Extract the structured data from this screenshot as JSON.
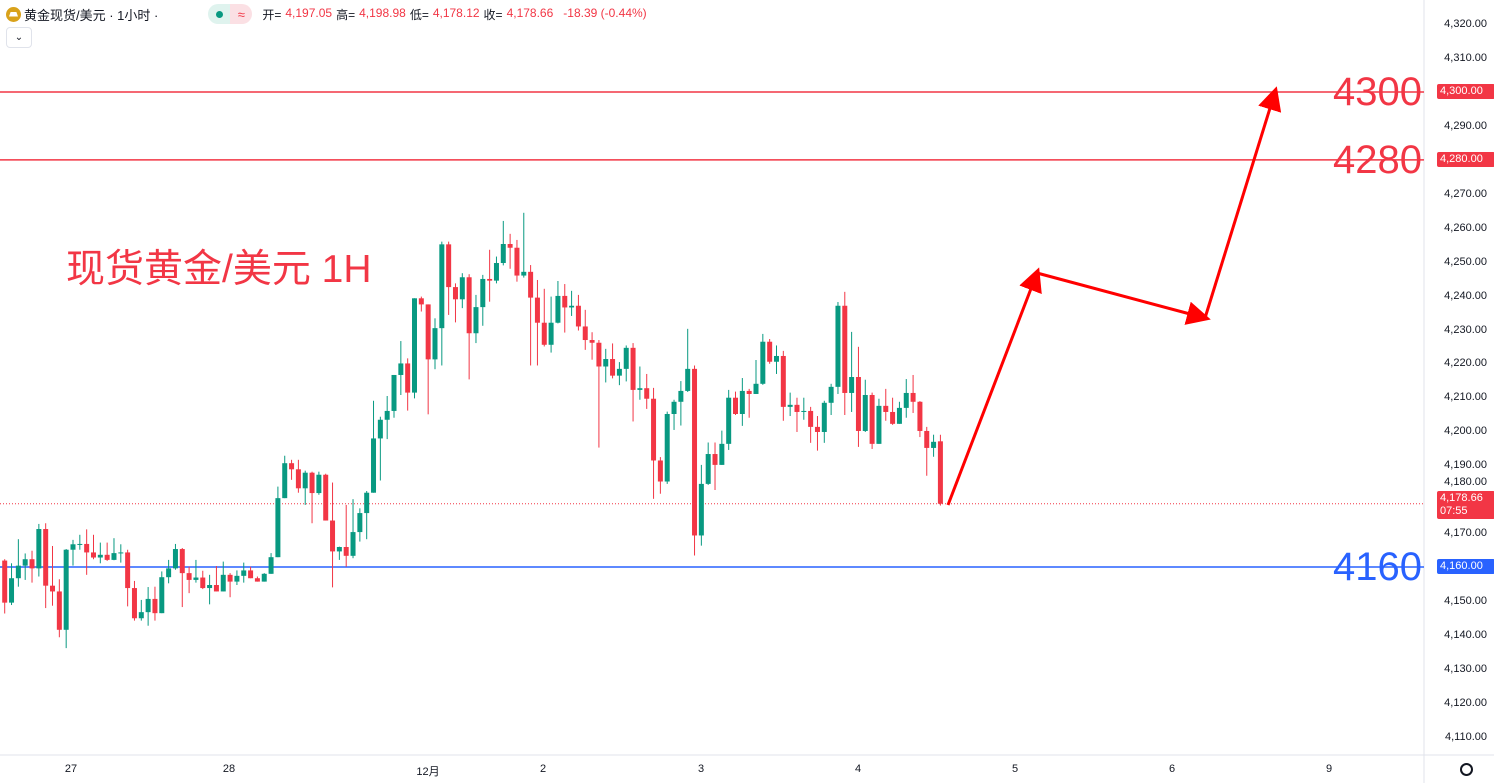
{
  "header": {
    "symbol": "黄金现货/美元 · 1小时 ·",
    "pill_wave": "≈",
    "open_label": "开=",
    "open": "4,197.05",
    "high_label": "高=",
    "high": "4,198.98",
    "low_label": "低=",
    "low": "4,178.12",
    "close_label": "收=",
    "close": "4,178.66",
    "change": "-18.39 (-0.44%)",
    "dropdown": "⌄"
  },
  "overlay_title": "现货黄金/美元 1H",
  "levels": [
    {
      "label": "4300",
      "tag": "4,300.00",
      "price": 4300,
      "color": "#f23645"
    },
    {
      "label": "4280",
      "tag": "4,280.00",
      "price": 4280,
      "color": "#f23645"
    },
    {
      "label": "4160",
      "tag": "4,160.00",
      "price": 4160,
      "color": "#2962ff"
    }
  ],
  "current": {
    "price": "4,178.66",
    "countdown": "07:55",
    "value": 4178.66,
    "color": "#f23645"
  },
  "chart_data": {
    "type": "candlestick",
    "ylim": [
      4105,
      4325
    ],
    "yticks": [
      "4,320.00",
      "4,310.00",
      "4,300.00",
      "4,290.00",
      "4,280.00",
      "4,270.00",
      "4,260.00",
      "4,250.00",
      "4,240.00",
      "4,230.00",
      "4,220.00",
      "4,210.00",
      "4,200.00",
      "4,190.00",
      "4,180.00",
      "4,170.00",
      "4,160.00",
      "4,150.00",
      "4,140.00",
      "4,130.00",
      "4,120.00",
      "4,110.00"
    ],
    "xticks": [
      "27",
      "28",
      "12月",
      "2",
      "3",
      "4",
      "5",
      "6",
      "9"
    ],
    "up_color": "#089981",
    "down_color": "#f23645",
    "ohlc": [
      [
        4161.9,
        4162.3,
        4146.3,
        4149.5
      ],
      [
        4149.5,
        4161.1,
        4148.8,
        4156.7
      ],
      [
        4156.7,
        4168.2,
        4154.2,
        4160.4
      ],
      [
        4160.4,
        4164,
        4156.2,
        4162.3
      ],
      [
        4162.3,
        4164.8,
        4155.4,
        4159.6
      ],
      [
        4159.6,
        4172.7,
        4157.2,
        4171.2
      ],
      [
        4171.2,
        4172.9,
        4147.9,
        4154.5
      ],
      [
        4154.5,
        4166.2,
        4148.6,
        4152.8
      ],
      [
        4152.8,
        4156.4,
        4139.3,
        4141.5
      ],
      [
        4141.5,
        4165.3,
        4136.1,
        4165.1
      ],
      [
        4165.1,
        4168,
        4160.4,
        4166.7
      ],
      [
        4166.7,
        4169.5,
        4165.1,
        4166.8
      ],
      [
        4166.8,
        4171.1,
        4157.7,
        4164.3
      ],
      [
        4164.3,
        4169.5,
        4162.3,
        4162.8
      ],
      [
        4162.8,
        4167.2,
        4161.1,
        4163.6
      ],
      [
        4163.6,
        4167.2,
        4161.8,
        4162.1
      ],
      [
        4162.1,
        4168.5,
        4162,
        4164.1
      ],
      [
        4164.1,
        4166.7,
        4161.3,
        4164.3
      ],
      [
        4164.3,
        4165.1,
        4148.4,
        4153.8
      ],
      [
        4153.8,
        4155.9,
        4144.2,
        4144.9
      ],
      [
        4144.9,
        4150.3,
        4144.2,
        4146.7
      ],
      [
        4146.7,
        4154.1,
        4142.7,
        4150.6
      ],
      [
        4150.6,
        4154.2,
        4144.2,
        4146.4
      ],
      [
        4146.4,
        4158.7,
        4146.4,
        4157
      ],
      [
        4157,
        4162.1,
        4155.2,
        4159.6
      ],
      [
        4159.6,
        4166.8,
        4159.2,
        4165.3
      ],
      [
        4165.3,
        4165.6,
        4148.2,
        4158.2
      ],
      [
        4158.2,
        4160.1,
        4152.3,
        4156.2
      ],
      [
        4156.2,
        4162.1,
        4155.4,
        4156.9
      ],
      [
        4156.9,
        4158.9,
        4153.5,
        4153.8
      ],
      [
        4153.8,
        4157.7,
        4149,
        4154.7
      ],
      [
        4154.7,
        4160.3,
        4152.8,
        4152.8
      ],
      [
        4152.8,
        4161.6,
        4152.8,
        4157.7
      ],
      [
        4157.7,
        4158.2,
        4151.1,
        4155.7
      ],
      [
        4155.7,
        4159,
        4154.7,
        4157.4
      ],
      [
        4157.4,
        4161.3,
        4155.4,
        4159
      ],
      [
        4159,
        4160.1,
        4156.7,
        4156.7
      ],
      [
        4156.7,
        4157.2,
        4155.7,
        4155.7
      ],
      [
        4155.7,
        4158.2,
        4155.7,
        4158
      ],
      [
        4158,
        4164.1,
        4158,
        4162.9
      ],
      [
        4162.9,
        4183.7,
        4162.9,
        4180.3
      ],
      [
        4180.3,
        4192.8,
        4180.3,
        4190.6
      ],
      [
        4190.6,
        4191.6,
        4185.7,
        4188.8
      ],
      [
        4188.8,
        4191.6,
        4181.9,
        4183.2
      ],
      [
        4183.2,
        4188.4,
        4178.3,
        4187.8
      ],
      [
        4187.8,
        4188.1,
        4172.9,
        4181.8
      ],
      [
        4181.8,
        4188.1,
        4181.3,
        4187.2
      ],
      [
        4187.2,
        4187.5,
        4173.7,
        4173.7
      ],
      [
        4173.7,
        4184.9,
        4154,
        4164.6
      ],
      [
        4164.6,
        4166,
        4162.1,
        4165.9
      ],
      [
        4165.9,
        4178.3,
        4160.1,
        4163.3
      ],
      [
        4163.3,
        4180,
        4162.6,
        4170.3
      ],
      [
        4170.3,
        4177.3,
        4167.5,
        4175.9
      ],
      [
        4175.9,
        4182.4,
        4168.2,
        4181.9
      ],
      [
        4181.9,
        4209,
        4181.9,
        4197.9
      ],
      [
        4197.9,
        4204.3,
        4185.5,
        4203.4
      ],
      [
        4203.4,
        4210.4,
        4197.7,
        4206
      ],
      [
        4206,
        4216.6,
        4204,
        4216.6
      ],
      [
        4216.6,
        4226.6,
        4210.7,
        4220
      ],
      [
        4220,
        4221.5,
        4206.1,
        4211.4
      ],
      [
        4211.4,
        4239.2,
        4209.7,
        4239.2
      ],
      [
        4239.2,
        4239.7,
        4235.3,
        4237.4
      ],
      [
        4237.4,
        4237.4,
        4205,
        4221.2
      ],
      [
        4221.2,
        4233.3,
        4218.3,
        4230.4
      ],
      [
        4230.4,
        4255.9,
        4219.4,
        4255.1
      ],
      [
        4255.1,
        4255.9,
        4234.3,
        4242.5
      ],
      [
        4242.5,
        4243.6,
        4232.1,
        4238.9
      ],
      [
        4238.9,
        4246.6,
        4236.3,
        4245.4
      ],
      [
        4245.4,
        4246.3,
        4215.3,
        4228.9
      ],
      [
        4228.9,
        4240.2,
        4226,
        4236.6
      ],
      [
        4236.6,
        4246.1,
        4231.1,
        4244.9
      ],
      [
        4244.9,
        4253.5,
        4238.2,
        4244.4
      ],
      [
        4244.4,
        4251.5,
        4243.6,
        4249.6
      ],
      [
        4249.6,
        4262,
        4248.9,
        4255.2
      ],
      [
        4255.2,
        4258.2,
        4247.9,
        4254.1
      ],
      [
        4254.1,
        4256.4,
        4244.1,
        4245.9
      ],
      [
        4245.9,
        4264.4,
        4245.3,
        4247
      ],
      [
        4247,
        4249,
        4219.4,
        4239.4
      ],
      [
        4239.4,
        4244.6,
        4219.4,
        4232
      ],
      [
        4232,
        4242,
        4225,
        4225.5
      ],
      [
        4225.5,
        4239.7,
        4223.2,
        4232
      ],
      [
        4232,
        4244.3,
        4231.8,
        4239.9
      ],
      [
        4239.9,
        4243.4,
        4229.1,
        4236.5
      ],
      [
        4236.5,
        4241.4,
        4234,
        4237
      ],
      [
        4237,
        4240.2,
        4229.7,
        4230.9
      ],
      [
        4230.9,
        4235.8,
        4224,
        4226.9
      ],
      [
        4226.9,
        4229.2,
        4221.1,
        4226.1
      ],
      [
        4226.1,
        4226.9,
        4195.2,
        4219.1
      ],
      [
        4219.1,
        4224.3,
        4214.4,
        4221.3
      ],
      [
        4221.3,
        4225.9,
        4215.6,
        4216.4
      ],
      [
        4216.4,
        4220.4,
        4213.6,
        4218.4
      ],
      [
        4218.4,
        4225.3,
        4214.7,
        4224.6
      ],
      [
        4224.6,
        4226,
        4202.9,
        4212.2
      ],
      [
        4212.2,
        4219.1,
        4209.3,
        4212.7
      ],
      [
        4212.7,
        4216.9,
        4206.6,
        4209.6
      ],
      [
        4209.6,
        4212.8,
        4180.1,
        4191.4
      ],
      [
        4191.4,
        4192.4,
        4181.6,
        4185.2
      ],
      [
        4185.2,
        4205.8,
        4184.5,
        4205.1
      ],
      [
        4205.1,
        4209.3,
        4200.4,
        4208.7
      ],
      [
        4208.7,
        4214.8,
        4201.7,
        4211.9
      ],
      [
        4211.9,
        4230.2,
        4211.6,
        4218.4
      ],
      [
        4218.4,
        4219.4,
        4163.4,
        4169.3
      ],
      [
        4169.3,
        4190.1,
        4166.3,
        4184.5
      ],
      [
        4184.5,
        4196.7,
        4184.2,
        4193.3
      ],
      [
        4193.3,
        4196.7,
        4182.7,
        4190.1
      ],
      [
        4190.1,
        4200.2,
        4190.1,
        4196.3
      ],
      [
        4196.3,
        4212.2,
        4194.5,
        4209.9
      ],
      [
        4209.9,
        4211.7,
        4204.8,
        4205.1
      ],
      [
        4205.1,
        4215.7,
        4201.6,
        4211.9
      ],
      [
        4211.9,
        4212.5,
        4204,
        4211
      ],
      [
        4211,
        4221,
        4211,
        4214
      ],
      [
        4214,
        4228.7,
        4213.7,
        4226.4
      ],
      [
        4226.4,
        4227.2,
        4219.9,
        4220.5
      ],
      [
        4220.5,
        4225.3,
        4216.9,
        4222.2
      ],
      [
        4222.2,
        4223.7,
        4203.1,
        4207.2
      ],
      [
        4207.2,
        4211.4,
        4204.5,
        4207.8
      ],
      [
        4207.8,
        4209.9,
        4199.8,
        4205.7
      ],
      [
        4205.7,
        4209.9,
        4203.4,
        4206
      ],
      [
        4206,
        4207.2,
        4196.6,
        4201.3
      ],
      [
        4201.3,
        4204.5,
        4194.3,
        4199.8
      ],
      [
        4199.8,
        4209,
        4196.6,
        4208.4
      ],
      [
        4208.4,
        4214,
        4204.8,
        4213.1
      ],
      [
        4213.1,
        4238.1,
        4211,
        4237
      ],
      [
        4237,
        4241.1,
        4204.8,
        4211.3
      ],
      [
        4211.3,
        4229.3,
        4205.7,
        4216
      ],
      [
        4216,
        4224.9,
        4195.4,
        4200.1
      ],
      [
        4200.1,
        4215.2,
        4199.8,
        4210.7
      ],
      [
        4210.7,
        4211.4,
        4194.8,
        4196.3
      ],
      [
        4196.3,
        4209.6,
        4196.3,
        4207.5
      ],
      [
        4207.5,
        4212.5,
        4203.1,
        4205.7
      ],
      [
        4205.7,
        4209.9,
        4201.9,
        4202.2
      ],
      [
        4202.2,
        4208.7,
        4202.2,
        4206.9
      ],
      [
        4206.9,
        4215.4,
        4204,
        4211.3
      ],
      [
        4211.3,
        4216.6,
        4205.4,
        4208.7
      ],
      [
        4208.7,
        4208.9,
        4198.3,
        4200.1
      ],
      [
        4200.1,
        4201.3,
        4186.9,
        4195.1
      ],
      [
        4195.1,
        4199,
        4192.5,
        4196.9
      ],
      [
        4197.05,
        4198.98,
        4178.12,
        4178.66
      ]
    ]
  }
}
